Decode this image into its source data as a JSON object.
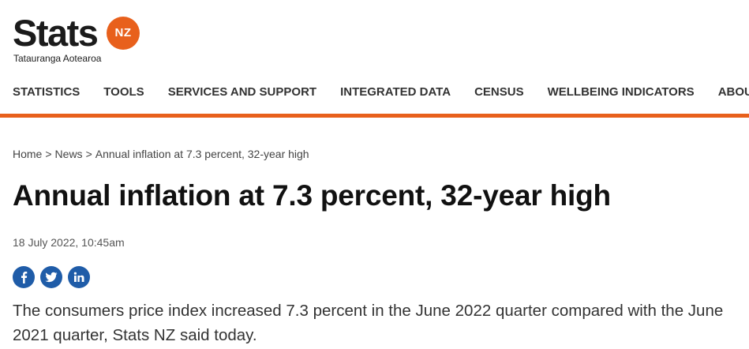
{
  "brand": {
    "wordmark": "Stats",
    "badge": "NZ",
    "tagline": "Tatauranga Aotearoa",
    "accent_color": "#e8601c"
  },
  "nav": {
    "items": [
      "STATISTICS",
      "TOOLS",
      "SERVICES AND SUPPORT",
      "INTEGRATED DATA",
      "CENSUS",
      "WELLBEING INDICATORS",
      "ABOUT"
    ]
  },
  "breadcrumb": {
    "home": "Home",
    "news": "News",
    "current": "Annual inflation at 7.3 percent, 32-year high",
    "separator": ">"
  },
  "article": {
    "title": "Annual inflation at 7.3 percent, 32-year high",
    "date": "18 July 2022, 10:45am",
    "lead": "The consumers price index increased 7.3 percent in the June 2022 quarter compared with the June 2021 quarter, Stats NZ said today."
  },
  "share": {
    "icons": [
      "facebook-icon",
      "twitter-icon",
      "linkedin-icon"
    ],
    "color": "#1f5ca8"
  }
}
